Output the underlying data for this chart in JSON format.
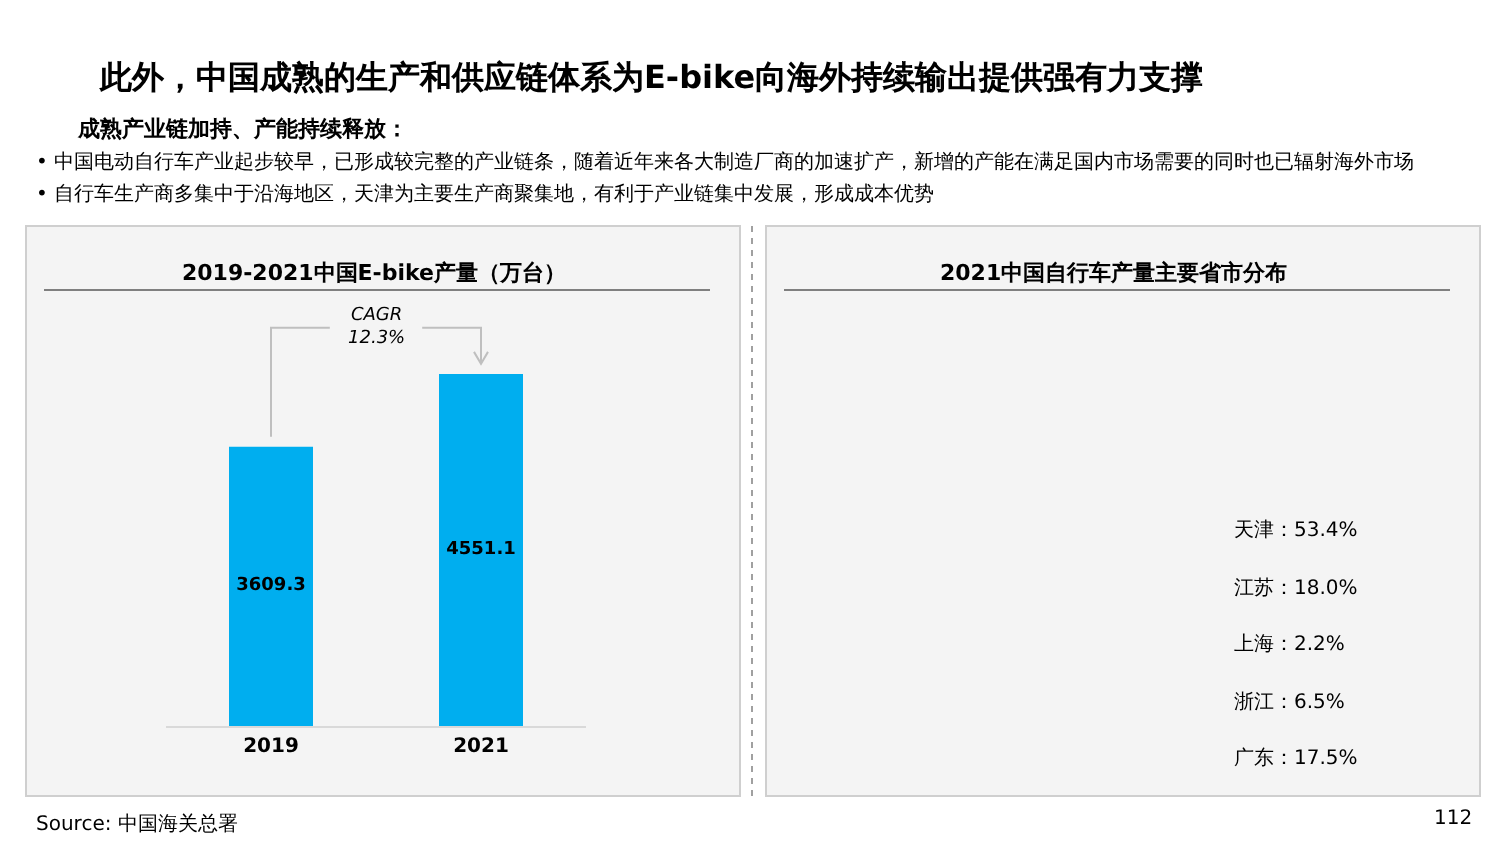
{
  "chart_data": [
    {
      "type": "other",
      "title": "此外，中国成熟的生产和供应链体系为E-bike向海外持续输出提供强有力支撑",
      "subtitle": "成熟产业链加持、产能持续释放：",
      "annotations": [
        "• 中国电动自行车产业起步较早，已形成较完整的产业链条，随着近年来各大制造厂商的加速扩产，新增的产能在满足国内市场需要的同时也已辐射海外市场",
        "• 自行车生产商多集中于沿海地区，天津为主要生产商聚集地，有利于产业链集中发展，形成成本优势",
        "Source: 中国海关总署",
        "112"
      ]
    },
    {
      "type": "bar",
      "title": "2019-2021中国E-bike产量（万台）",
      "categories": [
        "2019",
        "2021"
      ],
      "values": [
        3609.3,
        4551.1
      ],
      "color": "#00aeef",
      "data_labels": true,
      "annotations": [
        "CAGR\n12.3%"
      ]
    },
    {
      "type": "other",
      "title": "2021中国自行车产量主要省市分布",
      "annotations": [
        "天津：53.4%",
        "江苏：18.0%",
        "上海：2.2%",
        "浙江：6.5%",
        "广东：17.5%"
      ]
    }
  ]
}
